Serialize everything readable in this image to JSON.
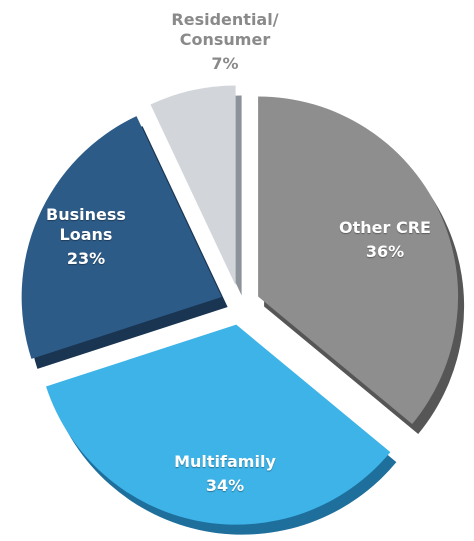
{
  "chart_data": {
    "type": "pie",
    "categories": [
      "Other CRE",
      "Multifamily",
      "Business Loans",
      "Residential/ Consumer"
    ],
    "values": [
      36,
      34,
      23,
      7
    ],
    "value_labels": [
      "36%",
      "34%",
      "23%",
      "7%"
    ],
    "colors": [
      "#8e8e8e",
      "#3db3e8",
      "#2d5b87",
      "#d2d6db"
    ],
    "side_colors": [
      "#565656",
      "#1e6f9c",
      "#1a3552",
      "#8d939a"
    ]
  }
}
